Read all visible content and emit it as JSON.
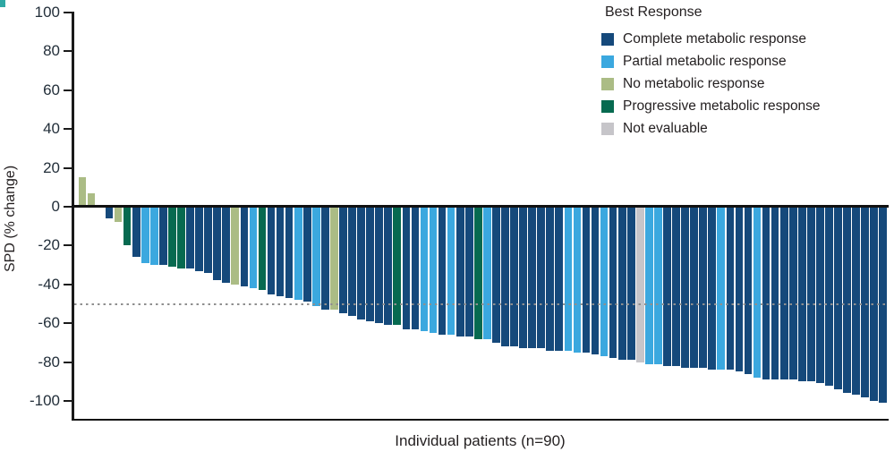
{
  "figure": {
    "panel_mark_color": "#2fa8a4"
  },
  "legend": {
    "title": "Best Response",
    "items": [
      {
        "key": "cmr",
        "label": "Complete metabolic response"
      },
      {
        "key": "pmr",
        "label": "Partial metabolic response"
      },
      {
        "key": "nmr",
        "label": "No metabolic response"
      },
      {
        "key": "pd",
        "label": "Progressive metabolic response"
      },
      {
        "key": "ne",
        "label": "Not evaluable"
      }
    ]
  },
  "chart_data": {
    "type": "bar",
    "subtype": "waterfall",
    "title": "",
    "xlabel": "Individual patients (n=90)",
    "ylabel": "SPD (% change)",
    "ylim": [
      -100,
      100
    ],
    "yticks": [
      100,
      80,
      60,
      40,
      20,
      0,
      -20,
      -40,
      -60,
      -80,
      -100
    ],
    "reference_line_y": -50,
    "grid": false,
    "legend_position": "top-right",
    "n_patients": 90,
    "colors": {
      "cmr": "#15497B",
      "pmr": "#3BA8DF",
      "nmr": "#ABBC85",
      "pd": "#076A50",
      "ne": "#C6C5C9"
    },
    "values": [
      15,
      7,
      0,
      -6,
      -8,
      -20,
      -26,
      -29,
      -30,
      -30,
      -31,
      -32,
      -32,
      -33,
      -34,
      -38,
      -39,
      -40,
      -41,
      -42,
      -43,
      -45,
      -46,
      -47,
      -48,
      -49,
      -51,
      -53,
      -53,
      -55,
      -56,
      -58,
      -59,
      -60,
      -61,
      -61,
      -63,
      -63,
      -64,
      -65,
      -66,
      -66,
      -67,
      -67,
      -68,
      -68,
      -70,
      -72,
      -72,
      -73,
      -73,
      -73,
      -74,
      -74,
      -74,
      -75,
      -75,
      -76,
      -77,
      -78,
      -79,
      -79,
      -80,
      -81,
      -81,
      -82,
      -82,
      -83,
      -83,
      -83,
      -84,
      -84,
      -84,
      -85,
      -86,
      -88,
      -89,
      -89,
      -89,
      -89,
      -90,
      -90,
      -91,
      -92,
      -94,
      -96,
      -97,
      -98,
      -100,
      -101
    ],
    "responses": [
      "nmr",
      "nmr",
      "nmr",
      "cmr",
      "nmr",
      "pd",
      "cmr",
      "pmr",
      "pmr",
      "cmr",
      "pd",
      "pd",
      "cmr",
      "cmr",
      "cmr",
      "cmr",
      "cmr",
      "nmr",
      "cmr",
      "pmr",
      "pd",
      "cmr",
      "cmr",
      "cmr",
      "pmr",
      "cmr",
      "pmr",
      "cmr",
      "nmr",
      "cmr",
      "cmr",
      "cmr",
      "cmr",
      "cmr",
      "cmr",
      "pd",
      "cmr",
      "cmr",
      "pmr",
      "pmr",
      "cmr",
      "pmr",
      "cmr",
      "cmr",
      "pd",
      "pmr",
      "cmr",
      "cmr",
      "cmr",
      "cmr",
      "cmr",
      "cmr",
      "cmr",
      "cmr",
      "pmr",
      "pmr",
      "cmr",
      "cmr",
      "pmr",
      "cmr",
      "cmr",
      "cmr",
      "ne",
      "pmr",
      "pmr",
      "cmr",
      "cmr",
      "cmr",
      "cmr",
      "cmr",
      "cmr",
      "pmr",
      "cmr",
      "cmr",
      "cmr",
      "pmr",
      "cmr",
      "cmr",
      "cmr",
      "cmr",
      "cmr",
      "cmr",
      "cmr",
      "cmr",
      "cmr",
      "cmr",
      "cmr",
      "cmr",
      "cmr",
      "cmr"
    ]
  }
}
